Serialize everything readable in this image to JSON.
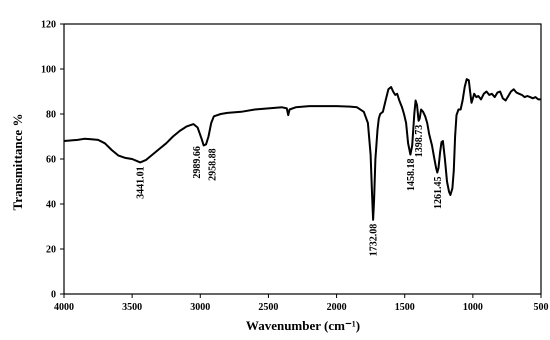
{
  "chart_data": {
    "type": "line",
    "xlabel": "Wavenumber (cm⁻¹)",
    "ylabel": "Transmittance %",
    "xlim": [
      4000,
      500
    ],
    "ylim": [
      0,
      120
    ],
    "x_ticks": [
      "4000",
      "3500",
      "3000",
      "2500",
      "2000",
      "1500",
      "1000",
      "500"
    ],
    "y_ticks": [
      "0",
      "20",
      "40",
      "60",
      "80",
      "100",
      "120"
    ],
    "grid": false,
    "series": [
      {
        "points": [
          [
            4000,
            68
          ],
          [
            3900,
            68.5
          ],
          [
            3850,
            69
          ],
          [
            3800,
            68.8
          ],
          [
            3750,
            68.5
          ],
          [
            3700,
            67
          ],
          [
            3650,
            64
          ],
          [
            3600,
            61.5
          ],
          [
            3550,
            60.5
          ],
          [
            3500,
            60
          ],
          [
            3460,
            59
          ],
          [
            3441,
            58.5
          ],
          [
            3400,
            59.5
          ],
          [
            3350,
            62
          ],
          [
            3300,
            64.5
          ],
          [
            3250,
            67
          ],
          [
            3200,
            70
          ],
          [
            3150,
            72.5
          ],
          [
            3100,
            74.5
          ],
          [
            3050,
            75.5
          ],
          [
            3020,
            74
          ],
          [
            2990,
            69
          ],
          [
            2975,
            66
          ],
          [
            2958,
            66.5
          ],
          [
            2940,
            70
          ],
          [
            2920,
            76
          ],
          [
            2900,
            79
          ],
          [
            2850,
            80
          ],
          [
            2800,
            80.5
          ],
          [
            2700,
            81
          ],
          [
            2600,
            82
          ],
          [
            2500,
            82.5
          ],
          [
            2400,
            83
          ],
          [
            2365,
            82.5
          ],
          [
            2355,
            79.5
          ],
          [
            2345,
            82
          ],
          [
            2300,
            83
          ],
          [
            2200,
            83.5
          ],
          [
            2100,
            83.5
          ],
          [
            2000,
            83.5
          ],
          [
            1900,
            83.3
          ],
          [
            1850,
            83
          ],
          [
            1800,
            81
          ],
          [
            1770,
            76
          ],
          [
            1750,
            62
          ],
          [
            1740,
            45
          ],
          [
            1732,
            33
          ],
          [
            1725,
            42
          ],
          [
            1715,
            60
          ],
          [
            1700,
            73
          ],
          [
            1690,
            78
          ],
          [
            1680,
            80
          ],
          [
            1670,
            80.5
          ],
          [
            1660,
            81
          ],
          [
            1640,
            86
          ],
          [
            1620,
            91
          ],
          [
            1600,
            92
          ],
          [
            1585,
            90
          ],
          [
            1570,
            88.5
          ],
          [
            1555,
            89
          ],
          [
            1540,
            86
          ],
          [
            1520,
            83
          ],
          [
            1505,
            80
          ],
          [
            1490,
            76
          ],
          [
            1475,
            67
          ],
          [
            1458,
            62
          ],
          [
            1445,
            66
          ],
          [
            1430,
            80
          ],
          [
            1420,
            86
          ],
          [
            1410,
            84
          ],
          [
            1398,
            77
          ],
          [
            1390,
            78
          ],
          [
            1380,
            82
          ],
          [
            1365,
            81
          ],
          [
            1350,
            79
          ],
          [
            1335,
            76
          ],
          [
            1320,
            71
          ],
          [
            1300,
            66
          ],
          [
            1285,
            61
          ],
          [
            1270,
            56
          ],
          [
            1261,
            54
          ],
          [
            1252,
            56
          ],
          [
            1240,
            63
          ],
          [
            1230,
            67.5
          ],
          [
            1220,
            68
          ],
          [
            1205,
            60
          ],
          [
            1190,
            50
          ],
          [
            1175,
            45.5
          ],
          [
            1165,
            44
          ],
          [
            1150,
            47
          ],
          [
            1140,
            55
          ],
          [
            1130,
            70
          ],
          [
            1120,
            79.5
          ],
          [
            1105,
            82
          ],
          [
            1090,
            82
          ],
          [
            1075,
            86
          ],
          [
            1060,
            92
          ],
          [
            1045,
            95.5
          ],
          [
            1030,
            95
          ],
          [
            1020,
            90
          ],
          [
            1010,
            85
          ],
          [
            1000,
            87
          ],
          [
            990,
            89
          ],
          [
            975,
            87.5
          ],
          [
            960,
            88
          ],
          [
            940,
            86.5
          ],
          [
            920,
            89
          ],
          [
            900,
            90
          ],
          [
            880,
            88.5
          ],
          [
            860,
            89
          ],
          [
            840,
            87.5
          ],
          [
            820,
            89.5
          ],
          [
            800,
            90
          ],
          [
            780,
            87
          ],
          [
            760,
            86
          ],
          [
            740,
            88
          ],
          [
            720,
            90
          ],
          [
            700,
            91
          ],
          [
            680,
            89.5
          ],
          [
            660,
            89
          ],
          [
            640,
            88.5
          ],
          [
            620,
            87.5
          ],
          [
            600,
            88
          ],
          [
            580,
            87.5
          ],
          [
            560,
            87
          ],
          [
            540,
            87.5
          ],
          [
            520,
            86.5
          ],
          [
            500,
            86.5
          ]
        ]
      }
    ],
    "annotations": [
      {
        "text": "3441.01",
        "x": 3441,
        "y": 58.5
      },
      {
        "text": "2989.66",
        "x": 2990,
        "y": 67.5
      },
      {
        "text": "2958.88",
        "x": 2958,
        "y": 66.5
      },
      {
        "text": "1732.08",
        "x": 1732,
        "y": 33
      },
      {
        "text": "1458.18",
        "x": 1458,
        "y": 62
      },
      {
        "text": "1398.73",
        "x": 1398,
        "y": 77
      },
      {
        "text": "1261.45",
        "x": 1261,
        "y": 54
      }
    ]
  }
}
